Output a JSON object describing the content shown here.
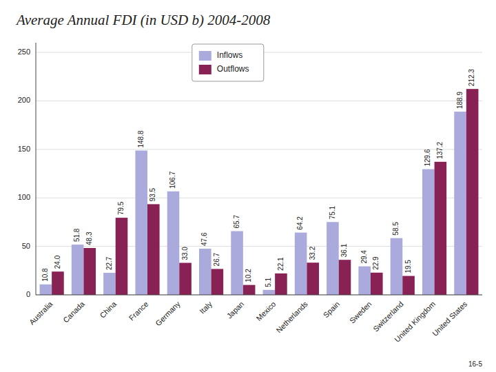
{
  "chart_data": {
    "type": "bar",
    "title": "Average Annual FDI (in USD b) 2004-2008",
    "categories": [
      "Australia",
      "Canada",
      "China",
      "France",
      "Germany",
      "Italy",
      "Japan",
      "Mexico",
      "Netherlands",
      "Spain",
      "Sweden",
      "Switzerland",
      "United Kingdom",
      "United States"
    ],
    "series": [
      {
        "name": "Inflows",
        "color": "#aaaadd",
        "values": [
          10.8,
          51.8,
          22.7,
          148.8,
          106.7,
          47.6,
          65.7,
          5.1,
          64.2,
          75.1,
          29.4,
          58.5,
          129.6,
          188.9
        ],
        "value_labels": [
          "10.8",
          "51.8",
          "22.7",
          "148.8",
          "106.7",
          "47.6",
          "65.7",
          "5.1",
          "64.2",
          "75.1",
          "29.4",
          "58.5",
          "129.6",
          "188.9"
        ]
      },
      {
        "name": "Outflows",
        "color": "#882255",
        "values": [
          24.0,
          48.3,
          79.5,
          93.5,
          33.0,
          26.7,
          10.2,
          22.1,
          33.2,
          36.1,
          22.9,
          19.5,
          137.2,
          212.3
        ],
        "value_labels": [
          "24.0",
          "48.3",
          "79.5",
          "93.5",
          "33.0",
          "26.7",
          "10.2",
          "22.1",
          "33.2",
          "36.1",
          "22.9",
          "19.5",
          "137.2",
          "212.3"
        ]
      }
    ],
    "ylim": [
      0,
      260
    ],
    "yticks": [
      0,
      50,
      100,
      150,
      200,
      250
    ],
    "grid": true,
    "legend": "upper center",
    "data_labels": true,
    "annotations": [
      "16-5"
    ]
  }
}
